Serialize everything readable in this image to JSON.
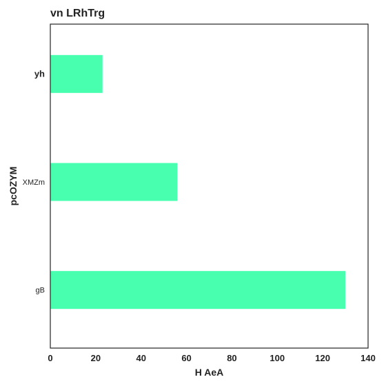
{
  "chart_data": {
    "type": "bar",
    "orientation": "horizontal",
    "title": "vn LRhTrg",
    "xlabel": "H AeA",
    "ylabel": "pcOZYM",
    "categories": [
      "yh",
      "XMZm",
      "gB"
    ],
    "values": [
      23,
      56,
      130
    ],
    "xlim": [
      0,
      140
    ],
    "xticks": [
      0,
      20,
      40,
      60,
      80,
      100,
      120,
      140
    ],
    "bar_color": "#48ffb0",
    "grid": false,
    "legend": "none"
  }
}
